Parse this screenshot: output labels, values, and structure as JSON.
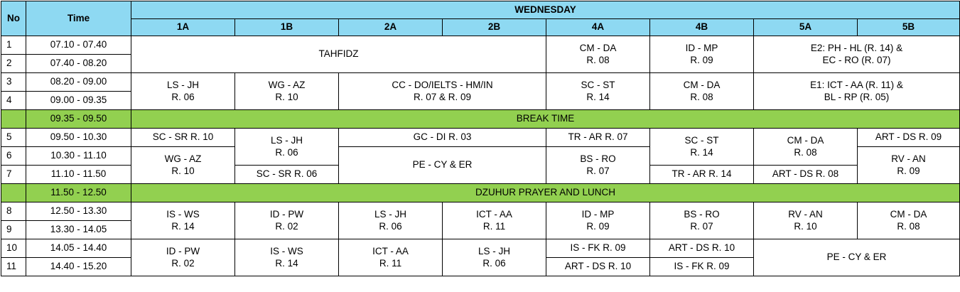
{
  "header": {
    "no": "No",
    "time": "Time",
    "day": "WEDNESDAY",
    "classes": [
      "1A",
      "1B",
      "2A",
      "2B",
      "4A",
      "4B",
      "5A",
      "5B"
    ]
  },
  "periods": [
    {
      "no": "1",
      "time": "07.10 - 07.40"
    },
    {
      "no": "2",
      "time": "07.40 - 08.20"
    },
    {
      "no": "3",
      "time": "08.20 - 09.00"
    },
    {
      "no": "4",
      "time": "09.00 - 09.35"
    },
    {
      "no": "5",
      "time": "09.50 - 10.30"
    },
    {
      "no": "6",
      "time": "10.30 - 11.10"
    },
    {
      "no": "7",
      "time": "11.10 - 11.50"
    },
    {
      "no": "8",
      "time": "12.50 - 13.30"
    },
    {
      "no": "9",
      "time": "13.30 - 14.05"
    },
    {
      "no": "10",
      "time": "14.05 - 14.40"
    },
    {
      "no": "11",
      "time": "14.40 - 15.20"
    }
  ],
  "breaks": [
    {
      "time": "09.35 - 09.50",
      "label": "BREAK TIME"
    },
    {
      "time": "11.50 - 12.50",
      "label": "DZUHUR PRAYER AND LUNCH"
    }
  ],
  "cells": {
    "tahfidz": "TAHFIDZ",
    "p12_4a": [
      "CM - DA",
      "R. 08"
    ],
    "p12_4b": [
      "ID - MP",
      "R. 09"
    ],
    "p12_5": [
      "E2: PH - HL (R. 14) &",
      "EC - RO (R. 07)"
    ],
    "p34_1a": [
      "LS - JH",
      "R. 06"
    ],
    "p34_1b": [
      "WG - AZ",
      "R. 10"
    ],
    "p34_2": [
      "CC - DO/IELTS - HM/IN",
      "R. 07 & R. 09"
    ],
    "p34_4a": [
      "SC - ST",
      "R. 14"
    ],
    "p34_4b": [
      "CM - DA",
      "R. 08"
    ],
    "p34_5": [
      "E1: ICT - AA (R. 11) &",
      "BL - RP (R. 05)"
    ],
    "p5_1a": "SC - SR R. 10",
    "p56_1b": [
      "LS - JH",
      "R. 06"
    ],
    "p5_2": "GC - DI R. 03",
    "p5_4a": "TR - AR R. 07",
    "p56_4b": [
      "SC - ST",
      "R. 14"
    ],
    "p56_5a": [
      "CM - DA",
      "R. 08"
    ],
    "p5_5b": "ART - DS R. 09",
    "p67_1a": [
      "WG - AZ",
      "R. 10"
    ],
    "p67_2": "PE - CY & ER",
    "p67_4a": [
      "BS - RO",
      "R. 07"
    ],
    "p67_5b": [
      "RV - AN",
      "R. 09"
    ],
    "p7_1b": "SC - SR R. 06",
    "p7_4b": "TR - AR R. 14",
    "p7_5a": "ART - DS R. 08",
    "p89_1a": [
      "IS - WS",
      "R. 14"
    ],
    "p89_1b": [
      "ID - PW",
      "R. 02"
    ],
    "p89_2a": [
      "LS - JH",
      "R. 06"
    ],
    "p89_2b": [
      "ICT - AA",
      "R. 11"
    ],
    "p89_4a": [
      "ID - MP",
      "R. 09"
    ],
    "p89_4b": [
      "BS - RO",
      "R. 07"
    ],
    "p89_5a": [
      "RV - AN",
      "R. 10"
    ],
    "p89_5b": [
      "CM - DA",
      "R. 08"
    ],
    "p1011_1a": [
      "ID - PW",
      "R. 02"
    ],
    "p1011_1b": [
      "IS - WS",
      "R. 14"
    ],
    "p1011_2a": [
      "ICT - AA",
      "R. 11"
    ],
    "p1011_2b": [
      "LS - JH",
      "R. 06"
    ],
    "p10_4a": "IS - FK R. 09",
    "p10_4b": "ART - DS R. 10",
    "p1011_5": "PE - CY & ER",
    "p11_4a": "ART - DS R. 10",
    "p11_4b": "IS - FK R. 09"
  },
  "colors": {
    "header": "#8ed9f2",
    "break": "#92d050"
  }
}
